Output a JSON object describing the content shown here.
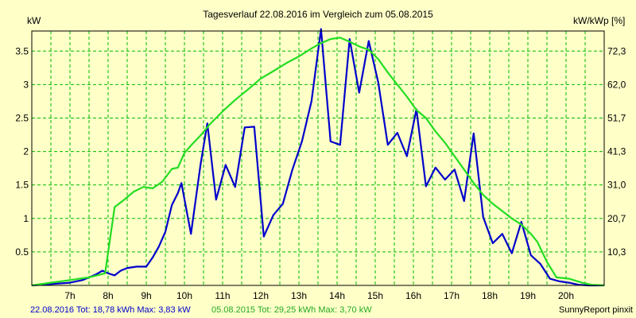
{
  "chart_data": {
    "type": "line",
    "title": "Tagesverlauf 22.08.2016 im Vergleich zum 05.08.2015",
    "ylabel_left": "kW",
    "ylabel_right": "kW/kWp [%]",
    "xlim": [
      6.0,
      21.0
    ],
    "ylim": [
      0,
      3.8
    ],
    "grid": true,
    "x_ticks": [
      7,
      8,
      9,
      10,
      11,
      12,
      13,
      14,
      15,
      16,
      17,
      18,
      19,
      20
    ],
    "x_tick_labels": [
      "7h",
      "8h",
      "9h",
      "10h",
      "11h",
      "12h",
      "13h",
      "14h",
      "15h",
      "16h",
      "17h",
      "18h",
      "19h",
      "20h"
    ],
    "y_ticks": [
      0.5,
      1,
      1.5,
      2,
      2.5,
      3,
      3.5
    ],
    "y_tick_labels": [
      "0.5",
      "1",
      "1.5",
      "2",
      "2.5",
      "3",
      "3.5"
    ],
    "y2_tick_labels": [
      "10,3",
      "20,7",
      "31,0",
      "41,3",
      "51,7",
      "62,0",
      "72,3"
    ],
    "series": [
      {
        "name": "22.08.2016",
        "color": "#0000cc",
        "points": [
          [
            6.0,
            0.0
          ],
          [
            6.5,
            0.02
          ],
          [
            7.0,
            0.04
          ],
          [
            7.33,
            0.08
          ],
          [
            7.67,
            0.16
          ],
          [
            7.85,
            0.22
          ],
          [
            8.0,
            0.18
          ],
          [
            8.17,
            0.15
          ],
          [
            8.33,
            0.22
          ],
          [
            8.5,
            0.26
          ],
          [
            8.75,
            0.28
          ],
          [
            9.0,
            0.28
          ],
          [
            9.17,
            0.42
          ],
          [
            9.33,
            0.58
          ],
          [
            9.5,
            0.8
          ],
          [
            9.67,
            1.2
          ],
          [
            9.83,
            1.38
          ],
          [
            9.92,
            1.53
          ],
          [
            10.17,
            0.77
          ],
          [
            10.42,
            1.8
          ],
          [
            10.6,
            2.42
          ],
          [
            10.83,
            1.28
          ],
          [
            11.08,
            1.8
          ],
          [
            11.33,
            1.47
          ],
          [
            11.58,
            2.36
          ],
          [
            11.83,
            2.37
          ],
          [
            12.08,
            0.73
          ],
          [
            12.33,
            1.05
          ],
          [
            12.58,
            1.22
          ],
          [
            12.83,
            1.73
          ],
          [
            13.08,
            2.15
          ],
          [
            13.33,
            2.75
          ],
          [
            13.58,
            3.83
          ],
          [
            13.83,
            2.15
          ],
          [
            14.08,
            2.1
          ],
          [
            14.33,
            3.68
          ],
          [
            14.58,
            2.88
          ],
          [
            14.83,
            3.65
          ],
          [
            15.08,
            3.03
          ],
          [
            15.33,
            2.1
          ],
          [
            15.58,
            2.28
          ],
          [
            15.83,
            1.93
          ],
          [
            16.08,
            2.63
          ],
          [
            16.33,
            1.48
          ],
          [
            16.58,
            1.76
          ],
          [
            16.83,
            1.58
          ],
          [
            17.08,
            1.73
          ],
          [
            17.33,
            1.26
          ],
          [
            17.58,
            2.27
          ],
          [
            17.83,
            1.02
          ],
          [
            18.08,
            0.63
          ],
          [
            18.33,
            0.77
          ],
          [
            18.58,
            0.48
          ],
          [
            18.83,
            0.95
          ],
          [
            19.08,
            0.45
          ],
          [
            19.33,
            0.32
          ],
          [
            19.58,
            0.1
          ],
          [
            19.83,
            0.06
          ],
          [
            20.08,
            0.04
          ],
          [
            20.33,
            0.01
          ],
          [
            20.58,
            0.0
          ],
          [
            21.0,
            0.0
          ]
        ]
      },
      {
        "name": "05.08.2015",
        "color": "#22dd22",
        "points": [
          [
            6.0,
            0.0
          ],
          [
            6.5,
            0.04
          ],
          [
            7.0,
            0.08
          ],
          [
            7.5,
            0.12
          ],
          [
            7.92,
            0.18
          ],
          [
            8.17,
            1.17
          ],
          [
            8.42,
            1.28
          ],
          [
            8.67,
            1.4
          ],
          [
            8.92,
            1.47
          ],
          [
            9.17,
            1.45
          ],
          [
            9.42,
            1.55
          ],
          [
            9.67,
            1.74
          ],
          [
            9.83,
            1.76
          ],
          [
            10.0,
            1.98
          ],
          [
            10.17,
            2.09
          ],
          [
            10.42,
            2.24
          ],
          [
            10.67,
            2.41
          ],
          [
            11.0,
            2.6
          ],
          [
            11.33,
            2.77
          ],
          [
            11.67,
            2.93
          ],
          [
            12.0,
            3.09
          ],
          [
            12.33,
            3.2
          ],
          [
            12.67,
            3.32
          ],
          [
            13.0,
            3.42
          ],
          [
            13.33,
            3.54
          ],
          [
            13.58,
            3.62
          ],
          [
            13.83,
            3.68
          ],
          [
            14.08,
            3.7
          ],
          [
            14.33,
            3.64
          ],
          [
            14.58,
            3.57
          ],
          [
            14.83,
            3.52
          ],
          [
            15.08,
            3.38
          ],
          [
            15.33,
            3.18
          ],
          [
            15.58,
            3.0
          ],
          [
            15.83,
            2.82
          ],
          [
            16.08,
            2.62
          ],
          [
            16.33,
            2.5
          ],
          [
            16.58,
            2.3
          ],
          [
            16.83,
            2.13
          ],
          [
            17.08,
            1.93
          ],
          [
            17.33,
            1.73
          ],
          [
            17.58,
            1.53
          ],
          [
            17.83,
            1.35
          ],
          [
            18.08,
            1.22
          ],
          [
            18.33,
            1.11
          ],
          [
            18.58,
            1.0
          ],
          [
            18.83,
            0.91
          ],
          [
            19.08,
            0.77
          ],
          [
            19.25,
            0.65
          ],
          [
            19.5,
            0.35
          ],
          [
            19.75,
            0.12
          ],
          [
            20.08,
            0.1
          ],
          [
            20.42,
            0.04
          ],
          [
            20.67,
            0.01
          ],
          [
            21.0,
            0.0
          ]
        ]
      }
    ]
  },
  "footer": {
    "series1_text": "22.08.2016 Tot: 18,78 kWh Max: 3,83 kW",
    "series2_text": "05.08.2015 Tot: 29,25 kWh Max: 3,70 kW",
    "credit": "SunnyReport pinxit"
  }
}
